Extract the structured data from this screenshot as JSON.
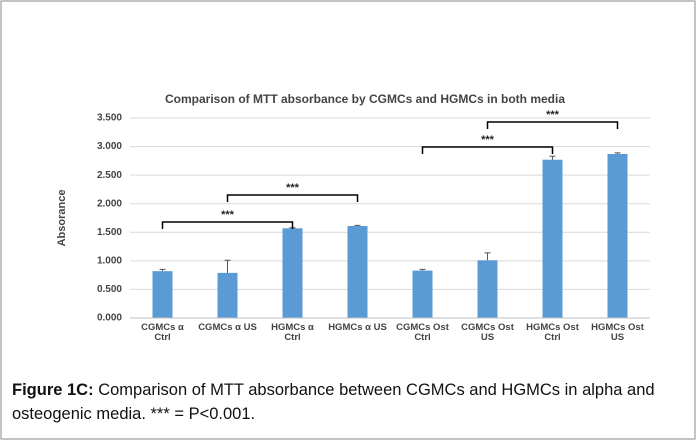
{
  "chart_data": {
    "type": "bar",
    "title": "Comparison of MTT absorbance by CGMCs and HGMCs in both media",
    "y_label": "Absorance",
    "categories": [
      "CGMCs α\nCtrl",
      "CGMCs α US",
      "HGMCs α\nCtrl",
      "HGMCs α US",
      "CGMCs Ost\nCtrl",
      "CGMCs Ost\nUS",
      "HGMCs Ost\nCtrl",
      "HGMCs Ost\nUS"
    ],
    "values": [
      0.82,
      0.79,
      1.57,
      1.61,
      0.83,
      1.01,
      2.77,
      2.87
    ],
    "errors": [
      0.03,
      0.22,
      0.01,
      0.01,
      0.02,
      0.13,
      0.06,
      0.02
    ],
    "color": "#5b9bd5",
    "ylim": [
      0,
      3.5
    ],
    "yticks": [
      {
        "value": 0,
        "label": "0.000"
      },
      {
        "value": 0.5,
        "label": "0.500"
      },
      {
        "value": 1,
        "label": "1.000"
      },
      {
        "value": 1.5,
        "label": "1.500"
      },
      {
        "value": 2,
        "label": "2.000"
      },
      {
        "value": 2.5,
        "label": "2.500"
      },
      {
        "value": 3,
        "label": "3.000"
      },
      {
        "value": 3.5,
        "label": "3.500"
      }
    ],
    "grid": true,
    "annotations": [
      "***",
      "***",
      "***",
      "***"
    ]
  },
  "caption": {
    "label": "Figure 1C:",
    "text": "Comparison of MTT absorbance between CGMCs and HGMCs in alpha and osteogenic media. *** = P<0.001."
  }
}
